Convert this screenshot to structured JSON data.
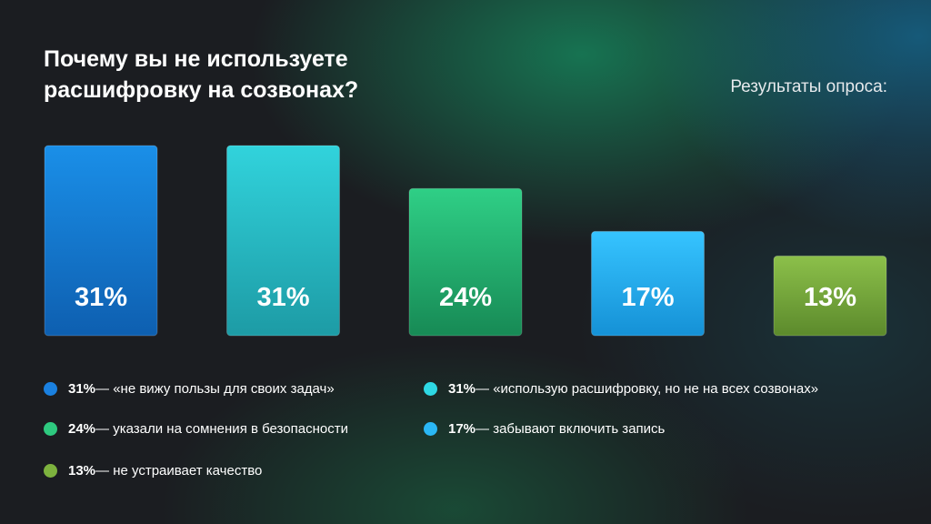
{
  "header": {
    "title": "Почему вы не используете расшифровку на созвонах?",
    "subtitle": "Результаты опроса:"
  },
  "chart_data": {
    "type": "bar",
    "title": "Почему вы не используете расшифровку на созвонах?",
    "categories": [
      "«не вижу пользы для своих задач»",
      "«использую расшифровку, но не на всех созвонах»",
      "указали на сомнения в безопасности",
      "забывают включить запись",
      "не устраивает качество"
    ],
    "values": [
      31,
      31,
      24,
      17,
      13
    ],
    "value_labels": [
      "31%",
      "31%",
      "24%",
      "17%",
      "13%"
    ],
    "unit": "%",
    "ylim": [
      0,
      31
    ],
    "grid": false,
    "legend_placement": "bottom",
    "colors": [
      [
        "#1a8fe8",
        "#0e5fb0"
      ],
      [
        "#31d3dc",
        "#1d9ba5"
      ],
      [
        "#2fcf86",
        "#178a55"
      ],
      [
        "#36c4ff",
        "#1591d6"
      ],
      [
        "#8cc04a",
        "#5c8a2c"
      ]
    ]
  },
  "legend": [
    {
      "value": "31%",
      "text": " — «не вижу пользы для своих задач»",
      "color": "#1a80e0"
    },
    {
      "value": "31%",
      "text": " — «использую расшифровку, но не на всех созвонах»",
      "color": "#2ed8e4"
    },
    {
      "value": "24%",
      "text": " — указали на сомнения в безопасности",
      "color": "#2ec97f"
    },
    {
      "value": "17%",
      "text": " — забывают включить запись",
      "color": "#2ab7f5"
    },
    {
      "value": "13%",
      "text": " — не устраивает качество",
      "color": "#7db23e"
    }
  ]
}
